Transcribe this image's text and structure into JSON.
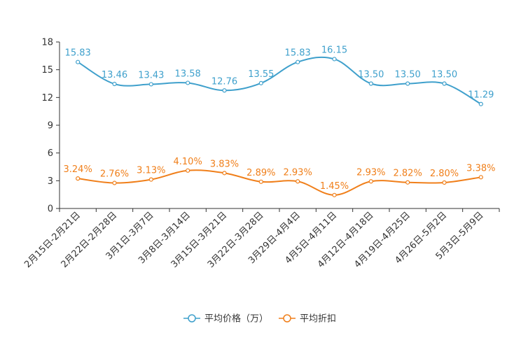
{
  "chart_data": {
    "type": "line",
    "title": "",
    "xlabel": "",
    "ylabel": "",
    "ylim": [
      0,
      18
    ],
    "yticks": [
      0,
      3,
      6,
      9,
      12,
      15,
      18
    ],
    "grid": false,
    "smooth": true,
    "legend_position": "bottom",
    "categories": [
      "2月15日-2月21日",
      "2月22日-2月28日",
      "3月1日-3月7日",
      "3月8日-3月14日",
      "3月15日-3月21日",
      "3月22日-3月28日",
      "3月29日-4月4日",
      "4月5日-4月11日",
      "4月12日-4月18日",
      "4月19日-4月25日",
      "4月26日-5月2日",
      "5月3日-5月9日"
    ],
    "series": [
      {
        "name": "平均价格（万）",
        "color": "#3fa0cc",
        "values": [
          15.83,
          13.46,
          13.43,
          13.58,
          12.76,
          13.55,
          15.83,
          16.15,
          13.5,
          13.5,
          13.5,
          11.29
        ],
        "labels": [
          "15.83",
          "13.46",
          "13.43",
          "13.58",
          "12.76",
          "13.55",
          "15.83",
          "16.15",
          "13.50",
          "13.50",
          "13.50",
          "11.29"
        ]
      },
      {
        "name": "平均折扣",
        "color": "#f07f1a",
        "values": [
          3.24,
          2.76,
          3.13,
          4.1,
          3.83,
          2.89,
          2.93,
          1.45,
          2.93,
          2.82,
          2.8,
          3.38
        ],
        "labels": [
          "3.24%",
          "2.76%",
          "3.13%",
          "4.10%",
          "3.83%",
          "2.89%",
          "2.93%",
          "1.45%",
          "2.93%",
          "2.82%",
          "2.80%",
          "3.38%"
        ]
      }
    ]
  }
}
